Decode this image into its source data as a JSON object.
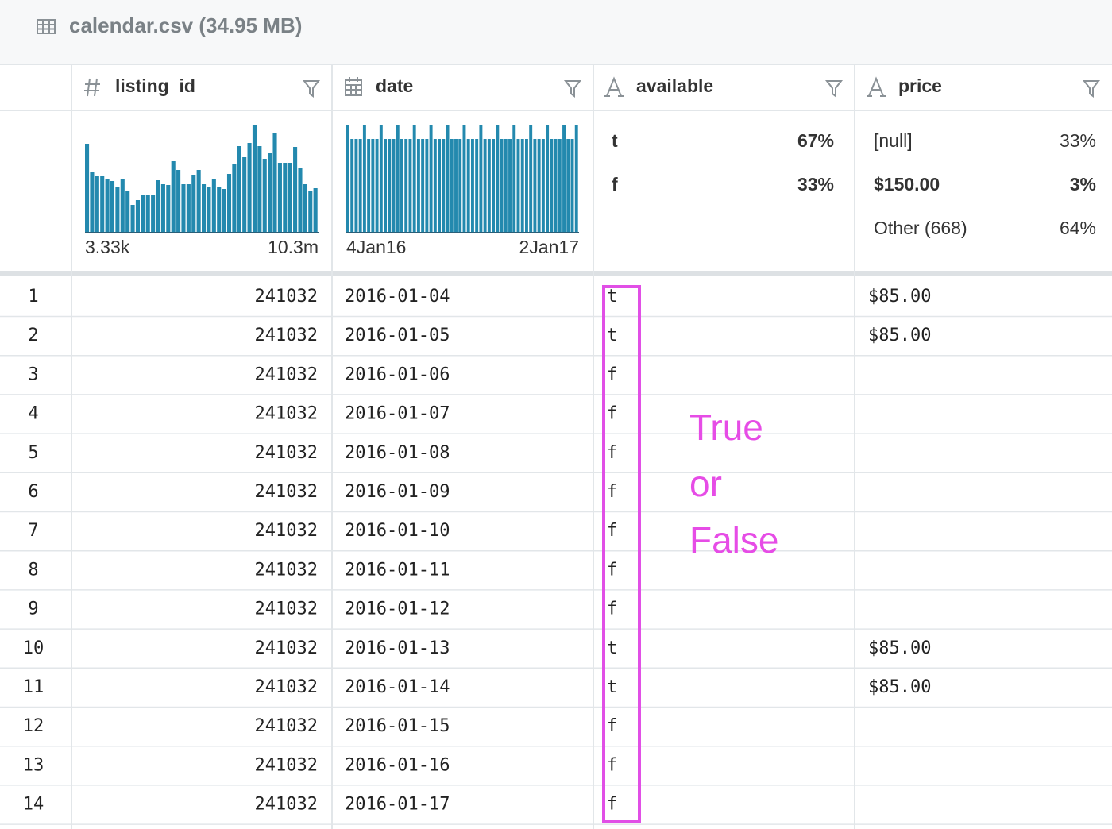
{
  "header": {
    "title": "calendar.csv (34.95 MB)"
  },
  "table": {
    "columns": [
      "listing_id",
      "date",
      "available",
      "price"
    ],
    "summaries": {
      "listing_id": {
        "histogram": [
          111,
          76,
          70,
          70,
          67,
          64,
          56,
          66,
          52,
          34,
          40,
          47,
          47,
          47,
          65,
          60,
          59,
          89,
          78,
          60,
          60,
          71,
          78,
          60,
          57,
          66,
          56,
          54,
          73,
          86,
          108,
          94,
          112,
          134,
          108,
          92,
          99,
          125,
          87,
          87,
          87,
          107,
          80,
          60,
          52,
          55
        ],
        "min_label": "3.33k",
        "max_label": "10.3m"
      },
      "date": {
        "histogram": [
          134,
          117,
          117,
          117,
          134,
          117,
          117,
          117,
          134,
          117,
          117,
          117,
          134,
          117,
          117,
          117,
          134,
          117,
          117,
          117,
          134,
          117,
          117,
          117,
          134,
          117,
          117,
          117,
          134,
          117,
          117,
          117,
          134,
          117,
          117,
          117,
          134,
          117,
          117,
          117,
          134,
          117,
          117,
          117,
          134,
          117,
          117,
          117,
          134,
          117,
          117,
          117,
          134,
          117,
          117,
          134
        ],
        "min_label": "4Jan16",
        "max_label": "2Jan17"
      },
      "available": {
        "rows": [
          [
            "t",
            "67%"
          ],
          [
            "f",
            "33%"
          ]
        ]
      },
      "price": {
        "rows": [
          [
            "[null]",
            "33%"
          ],
          [
            "$150.00",
            "3%"
          ],
          [
            "Other (668)",
            "64%"
          ]
        ]
      }
    },
    "rows": [
      [
        1,
        "241032",
        "2016-01-04",
        "t",
        "$85.00"
      ],
      [
        2,
        "241032",
        "2016-01-05",
        "t",
        "$85.00"
      ],
      [
        3,
        "241032",
        "2016-01-06",
        "f",
        null
      ],
      [
        4,
        "241032",
        "2016-01-07",
        "f",
        null
      ],
      [
        5,
        "241032",
        "2016-01-08",
        "f",
        null
      ],
      [
        6,
        "241032",
        "2016-01-09",
        "f",
        null
      ],
      [
        7,
        "241032",
        "2016-01-10",
        "f",
        null
      ],
      [
        8,
        "241032",
        "2016-01-11",
        "f",
        null
      ],
      [
        9,
        "241032",
        "2016-01-12",
        "f",
        null
      ],
      [
        10,
        "241032",
        "2016-01-13",
        "t",
        "$85.00"
      ],
      [
        11,
        "241032",
        "2016-01-14",
        "t",
        "$85.00"
      ],
      [
        12,
        "241032",
        "2016-01-15",
        "f",
        null
      ],
      [
        13,
        "241032",
        "2016-01-16",
        "f",
        null
      ],
      [
        14,
        "241032",
        "2016-01-17",
        "f",
        null
      ]
    ]
  },
  "annotation": {
    "lines": [
      "True",
      "or",
      "False"
    ]
  }
}
